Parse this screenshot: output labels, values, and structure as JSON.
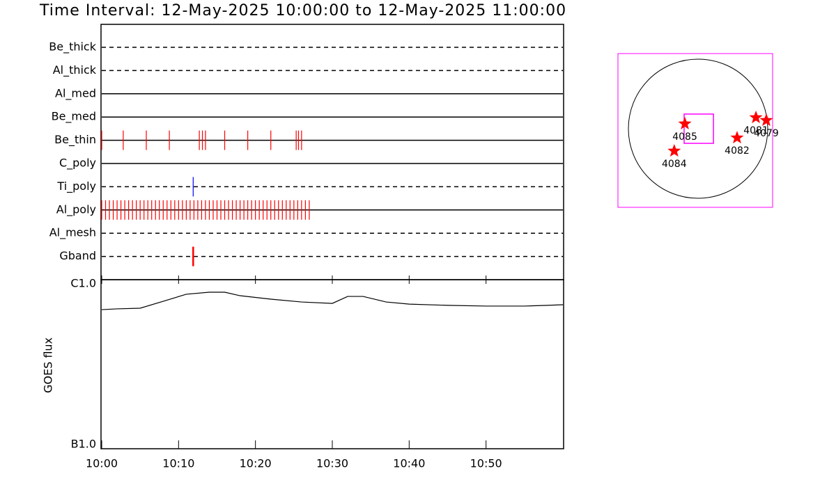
{
  "chart_data": [
    {
      "type": "timeline",
      "title": "Time Interval: 12-May-2025 10:00:00 to 12-May-2025 11:00:00",
      "xlim": [
        0,
        60
      ],
      "rows": [
        {
          "name": "Be_thick",
          "line_style": "dashed",
          "color": "#ff0000",
          "times": []
        },
        {
          "name": "Al_thick",
          "line_style": "dashed",
          "color": "#ff0000",
          "times": []
        },
        {
          "name": "Al_med",
          "line_style": "solid",
          "color": "#ff0000",
          "times": []
        },
        {
          "name": "Be_med",
          "line_style": "solid",
          "color": "#ff0000",
          "times": []
        },
        {
          "name": "Be_thin",
          "line_style": "solid",
          "color": "#ff0000",
          "times": [
            0,
            2.8,
            5.8,
            8.8,
            12.7,
            13.1,
            13.5,
            16.0,
            19.0,
            22.0,
            25.3,
            25.6,
            26.0
          ]
        },
        {
          "name": "C_poly",
          "line_style": "solid",
          "color": "#ff0000",
          "times": []
        },
        {
          "name": "Ti_poly",
          "line_style": "dashed",
          "color": "#0000ff",
          "times": [
            11.9
          ]
        },
        {
          "name": "Al_poly",
          "line_style": "solid",
          "color": "#ff0000",
          "times": [
            0,
            0.5,
            1,
            1.5,
            2,
            2.5,
            3,
            3.5,
            4,
            4.5,
            5,
            5.5,
            6,
            6.5,
            7,
            7.5,
            8,
            8.5,
            9,
            9.5,
            10,
            10.5,
            11,
            11.5,
            12,
            12.5,
            13,
            13.5,
            14,
            14.5,
            15,
            15.5,
            16,
            16.5,
            17,
            17.5,
            18,
            18.5,
            19,
            19.5,
            20,
            20.5,
            21,
            21.5,
            22,
            22.5,
            23,
            23.5,
            24,
            24.5,
            25,
            25.5,
            26,
            26.5,
            27
          ]
        },
        {
          "name": "Al_mesh",
          "line_style": "dashed",
          "color": "#ff0000",
          "times": []
        },
        {
          "name": "Gband",
          "line_style": "dashed",
          "color": "#ff0000",
          "times": [
            11.9
          ]
        }
      ]
    },
    {
      "type": "line",
      "y_label": "GOES flux",
      "log_scale": true,
      "xlim": [
        0,
        60
      ],
      "xticks": [
        {
          "value": 0,
          "label": "10:00"
        },
        {
          "value": 10,
          "label": "10:10"
        },
        {
          "value": 20,
          "label": "10:20"
        },
        {
          "value": 30,
          "label": "10:30"
        },
        {
          "value": 40,
          "label": "10:40"
        },
        {
          "value": 50,
          "label": "10:50"
        }
      ],
      "ylim": [
        1e-07,
        1e-06
      ],
      "yticks": [
        {
          "value": 1e-07,
          "label": "B1.0"
        },
        {
          "value": 1e-06,
          "label": "C1.0"
        }
      ],
      "x": [
        0,
        2,
        5,
        8,
        11,
        14,
        16,
        18,
        22,
        26,
        30,
        32,
        34,
        37,
        40,
        45,
        50,
        55,
        58,
        60
      ],
      "series": [
        {
          "color": "#000000",
          "values": [
            6.65e-07,
            6.72e-07,
            6.78e-07,
            7.45e-07,
            8.2e-07,
            8.43e-07,
            8.43e-07,
            8.04e-07,
            7.67e-07,
            7.38e-07,
            7.24e-07,
            7.96e-07,
            7.96e-07,
            7.38e-07,
            7.17e-07,
            7.05e-07,
            6.98e-07,
            6.98e-07,
            7.05e-07,
            7.11e-07
          ]
        }
      ]
    },
    {
      "type": "map",
      "color": "#ff0000",
      "fov": {
        "center": [
          10,
          0
        ],
        "size": [
          400,
          400
        ],
        "color": "#ff00ff"
      },
      "regions": [
        {
          "name": "4085",
          "x": -180,
          "y": 67
        },
        {
          "name": "4084",
          "x": -325,
          "y": -304
        },
        {
          "name": "4082",
          "x": 532,
          "y": -124
        },
        {
          "name": "4081",
          "x": 789,
          "y": 152
        },
        {
          "name": "4079",
          "x": 931,
          "y": 114
        }
      ]
    }
  ]
}
